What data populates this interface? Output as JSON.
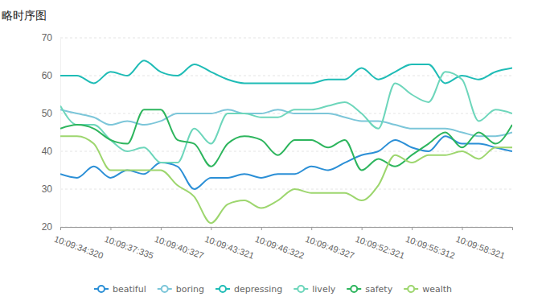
{
  "chart_data": {
    "type": "line",
    "title": "略时序图",
    "categories": [
      "10:09:34:320",
      null,
      null,
      "10:09:37:335",
      null,
      null,
      "10:09:40:327",
      null,
      null,
      "10:09:43:321",
      null,
      null,
      "10:09:46:322",
      null,
      null,
      "10:09:49:327",
      null,
      null,
      "10:09:52:321",
      null,
      null,
      "10:09:55:312",
      null,
      null,
      "10:09:58:321",
      null,
      null,
      null
    ],
    "ylim": [
      20,
      70
    ],
    "yticks": [
      20,
      30,
      40,
      50,
      60,
      70
    ],
    "grid": true,
    "legend": "bottom",
    "series": [
      {
        "name": "beatiful",
        "color": "#2b8fd6",
        "values": [
          34,
          33,
          36,
          33,
          35,
          34,
          37,
          36,
          30,
          33,
          33,
          34,
          33,
          34,
          34,
          36,
          35,
          37,
          39,
          40,
          43,
          41,
          40,
          44,
          42,
          42,
          41,
          40
        ]
      },
      {
        "name": "boring",
        "color": "#7cc6d9",
        "values": [
          51,
          50,
          49,
          47,
          48,
          47,
          48,
          50,
          50,
          50,
          51,
          50,
          50,
          51,
          50,
          50,
          50,
          49,
          48,
          48,
          47,
          46,
          46,
          46,
          45,
          44,
          44,
          45
        ]
      },
      {
        "name": "depressing",
        "color": "#1fbcb6",
        "values": [
          60,
          60,
          58,
          61,
          60,
          64,
          61,
          60,
          63,
          61,
          59,
          58,
          58,
          58,
          58,
          58,
          59,
          59,
          62,
          59,
          61,
          63,
          63,
          58,
          60,
          59,
          61,
          62
        ]
      },
      {
        "name": "lively",
        "color": "#6dd6bb",
        "values": [
          52,
          47,
          47,
          43,
          40,
          41,
          37,
          37,
          46,
          42,
          50,
          50,
          49,
          49,
          51,
          51,
          52,
          53,
          50,
          46,
          58,
          55,
          53,
          61,
          59,
          48,
          51,
          50
        ]
      },
      {
        "name": "safety",
        "color": "#2db55d",
        "values": [
          46,
          47,
          46,
          43,
          42,
          51,
          51,
          43,
          42,
          36,
          42,
          44,
          43,
          39,
          43,
          43,
          41,
          43,
          35,
          38,
          36,
          39,
          42,
          45,
          41,
          45,
          42,
          47
        ]
      },
      {
        "name": "wealth",
        "color": "#9dd66e",
        "values": [
          44,
          44,
          42,
          35,
          35,
          35,
          35,
          31,
          28,
          21,
          26,
          27,
          25,
          27,
          30,
          29,
          29,
          29,
          27,
          31,
          39,
          37,
          39,
          39,
          40,
          38,
          41,
          41
        ]
      }
    ]
  }
}
